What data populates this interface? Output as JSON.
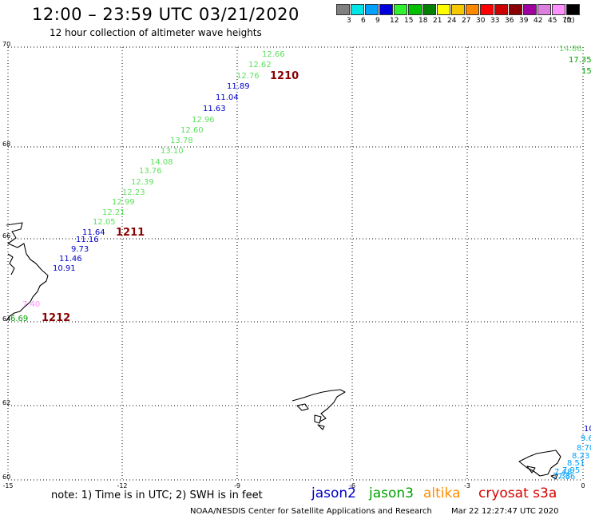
{
  "header": {
    "title": "12:00 – 23:59 UTC 03/21/2020",
    "subtitle": "12 hour collection of altimeter wave heights"
  },
  "legend": {
    "swatches": [
      "#808080",
      "#00e5e5",
      "#00a0ff",
      "#0000dd",
      "#30f030",
      "#00c000",
      "#008000",
      "#ffff00",
      "#f5c800",
      "#ff8800",
      "#ff0000",
      "#cc0000",
      "#8b0000",
      "#a000a0",
      "#dd80dd",
      "#ff90ff",
      "#000000"
    ],
    "labels": [
      "3",
      "6",
      "9",
      "12",
      "15",
      "18",
      "21",
      "24",
      "27",
      "30",
      "33",
      "36",
      "39",
      "42",
      "45",
      "70"
    ],
    "unit": "(ft)"
  },
  "axes": {
    "x_ticks": [
      "-15",
      "-12",
      "-9",
      "-6",
      "-3",
      "0"
    ],
    "y_ticks": [
      "70",
      "68",
      "66",
      "64",
      "62",
      "60"
    ]
  },
  "colors": {
    "jason2": "#0000c8",
    "jason3": "#00a000",
    "altika": "#ff8c00",
    "cryosat": "#d80000",
    "swh_green": "#60e060",
    "pass_label": "#8b0000"
  },
  "pass_labels": [
    "1210",
    "1211",
    "1212"
  ],
  "track_readings": [
    {
      "text": "12.66",
      "color": "#60e060"
    },
    {
      "text": "12.62",
      "color": "#60e060"
    },
    {
      "text": "12.76",
      "color": "#60e060"
    },
    {
      "text": "11.89",
      "color": "#0000c8"
    },
    {
      "text": "11.04",
      "color": "#0000c8"
    },
    {
      "text": "11.63",
      "color": "#0000c8"
    },
    {
      "text": "12.96",
      "color": "#60e060"
    },
    {
      "text": "12.60",
      "color": "#60e060"
    },
    {
      "text": "13.78",
      "color": "#60e060"
    },
    {
      "text": "13.10",
      "color": "#60e060"
    },
    {
      "text": "14.08",
      "color": "#60e060"
    },
    {
      "text": "13.76",
      "color": "#60e060"
    },
    {
      "text": "12.39",
      "color": "#60e060"
    },
    {
      "text": "12.23",
      "color": "#60e060"
    },
    {
      "text": "12.99",
      "color": "#60e060"
    },
    {
      "text": "12.21",
      "color": "#60e060"
    },
    {
      "text": "12.05",
      "color": "#60e060"
    },
    {
      "text": "11.64",
      "color": "#0000c8"
    },
    {
      "text": "11.16",
      "color": "#0000c8"
    },
    {
      "text": "9.73",
      "color": "#0000c8"
    },
    {
      "text": "11.46",
      "color": "#0000c8"
    },
    {
      "text": "10.91",
      "color": "#0000c8"
    },
    {
      "text": "7.40",
      "color": "#ff90ff"
    },
    {
      "text": "6.69",
      "color": "#00a000"
    }
  ],
  "edge_readings": [
    {
      "text": "14.86",
      "color": "#60e060"
    },
    {
      "text": "17.35",
      "color": "#00a000"
    },
    {
      "text": "15",
      "color": "#00a000"
    },
    {
      "text": "10",
      "color": "#0000c8"
    },
    {
      "text": "9.6",
      "color": "#00a0ff"
    },
    {
      "text": "8.70",
      "color": "#00a0ff"
    },
    {
      "text": "8.23",
      "color": "#00a0ff"
    },
    {
      "text": "8.51",
      "color": "#00a0ff"
    },
    {
      "text": "7.95",
      "color": "#00a0ff"
    },
    {
      "text": "7.66",
      "color": "#00a0ff"
    },
    {
      "text": "7.48",
      "color": "#00a0ff"
    },
    {
      "text": "7.33",
      "color": "#00a0ff"
    }
  ],
  "footer": {
    "note": "note: 1) Time is in UTC; 2) SWH is in feet",
    "missions": {
      "jason2": "jason2",
      "jason3": "jason3",
      "altika": "altika",
      "cryosat": "cryosat s3a"
    },
    "credit": "NOAA/NESDIS Center for Satellite Applications and Research",
    "timestamp": "Mar 22 12:27:47 UTC 2020"
  }
}
